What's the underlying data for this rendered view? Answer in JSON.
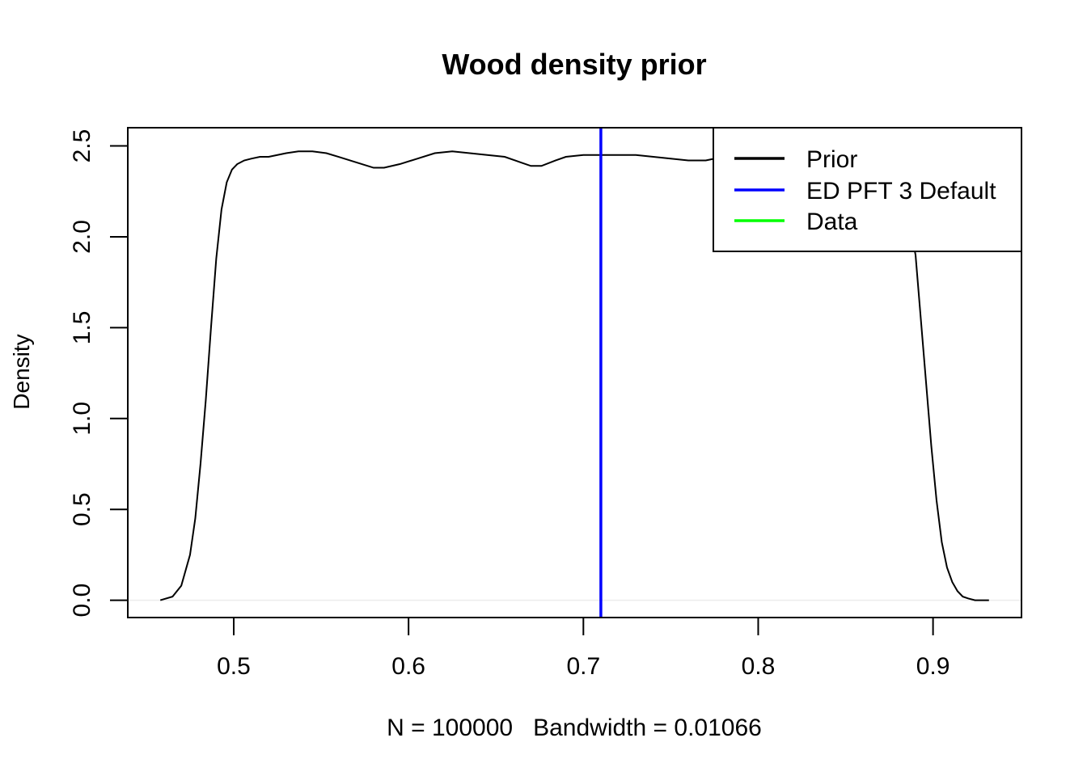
{
  "chart_data": {
    "type": "line",
    "title": "Wood density prior",
    "xlabel": "N = 100000   Bandwidth = 0.01066",
    "ylabel": "Density",
    "xlim": [
      0.4394,
      0.9506
    ],
    "ylim": [
      -0.0952,
      2.6003
    ],
    "x_ticks": [
      0.5,
      0.6,
      0.7,
      0.8,
      0.9
    ],
    "x_tick_labels": [
      "0.5",
      "0.6",
      "0.7",
      "0.8",
      "0.9"
    ],
    "y_ticks": [
      0.0,
      0.5,
      1.0,
      1.5,
      2.0,
      2.5
    ],
    "y_tick_labels": [
      "0.0",
      "0.5",
      "1.0",
      "1.5",
      "2.0",
      "2.5"
    ],
    "grid": false,
    "legend_position": "top-right",
    "series": [
      {
        "name": "Prior",
        "color": "#000000",
        "x": [
          0.458,
          0.465,
          0.47,
          0.475,
          0.478,
          0.481,
          0.484,
          0.487,
          0.49,
          0.493,
          0.496,
          0.499,
          0.502,
          0.506,
          0.51,
          0.515,
          0.52,
          0.525,
          0.53,
          0.537,
          0.545,
          0.553,
          0.56,
          0.57,
          0.58,
          0.586,
          0.595,
          0.605,
          0.615,
          0.625,
          0.635,
          0.645,
          0.655,
          0.664,
          0.67,
          0.676,
          0.684,
          0.69,
          0.7,
          0.71,
          0.72,
          0.73,
          0.74,
          0.75,
          0.76,
          0.77,
          0.78,
          0.79,
          0.8,
          0.81,
          0.82,
          0.83,
          0.84,
          0.85,
          0.86,
          0.87,
          0.878,
          0.884,
          0.888,
          0.89,
          0.893,
          0.896,
          0.899,
          0.902,
          0.905,
          0.908,
          0.911,
          0.914,
          0.917,
          0.92,
          0.924,
          0.928,
          0.932
        ],
        "y": [
          0.0,
          0.02,
          0.08,
          0.25,
          0.45,
          0.75,
          1.1,
          1.5,
          1.88,
          2.15,
          2.3,
          2.37,
          2.4,
          2.42,
          2.43,
          2.44,
          2.44,
          2.45,
          2.46,
          2.47,
          2.47,
          2.46,
          2.44,
          2.41,
          2.38,
          2.38,
          2.4,
          2.43,
          2.46,
          2.47,
          2.46,
          2.45,
          2.44,
          2.41,
          2.39,
          2.39,
          2.42,
          2.44,
          2.45,
          2.45,
          2.45,
          2.45,
          2.44,
          2.43,
          2.42,
          2.42,
          2.44,
          2.45,
          2.45,
          2.45,
          2.44,
          2.43,
          2.42,
          2.42,
          2.41,
          2.38,
          2.3,
          2.15,
          2.0,
          1.9,
          1.55,
          1.2,
          0.85,
          0.55,
          0.32,
          0.18,
          0.1,
          0.05,
          0.02,
          0.01,
          0.0,
          0.0,
          0.0
        ]
      },
      {
        "name": "ED PFT 3 Default",
        "color": "#0000ff",
        "x_value": 0.71
      },
      {
        "name": "Data",
        "color": "#00ff00"
      }
    ]
  }
}
